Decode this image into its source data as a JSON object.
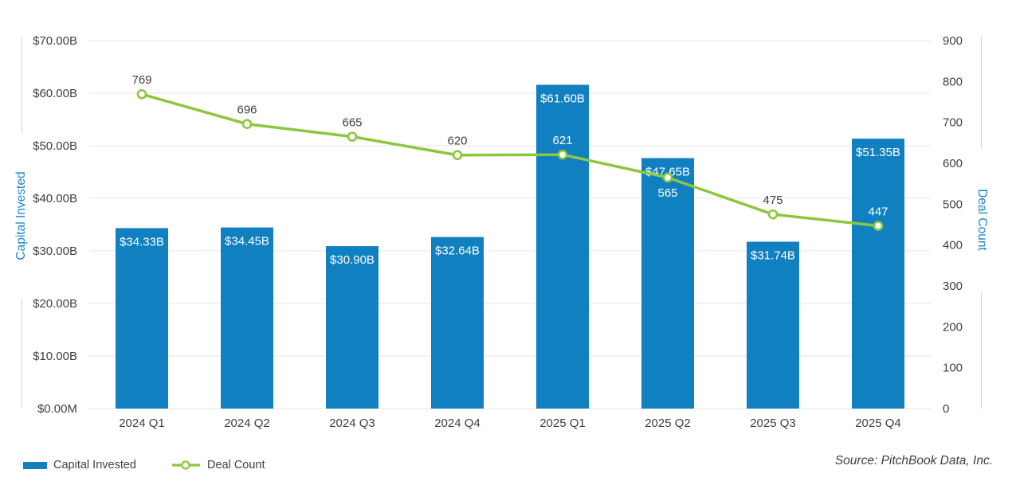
{
  "chart_data": {
    "type": "bar+line combo",
    "categories": [
      "2024 Q1",
      "2024 Q2",
      "2024 Q3",
      "2024 Q4",
      "2025 Q1",
      "2025 Q2",
      "2025 Q3",
      "2025 Q4"
    ],
    "series": [
      {
        "name": "Capital Invested",
        "type": "bar",
        "axis": "left",
        "values": [
          34.33,
          34.45,
          30.9,
          32.64,
          61.6,
          47.65,
          31.74,
          51.35
        ],
        "labels": [
          "$34.33B",
          "$34.45B",
          "$30.90B",
          "$32.64B",
          "$61.60B",
          "$47.65B",
          "$31.74B",
          "$51.35B"
        ],
        "color": "#1180c1"
      },
      {
        "name": "Deal Count",
        "type": "line",
        "axis": "right",
        "values": [
          769,
          696,
          665,
          620,
          621,
          565,
          475,
          447
        ],
        "labels": [
          "769",
          "696",
          "665",
          "620",
          "621",
          "565",
          "475",
          "447"
        ],
        "color": "#8dc63f"
      }
    ],
    "left_axis": {
      "title": "Capital Invested",
      "max": 70,
      "min": 0,
      "ticks": [
        {
          "value": 70,
          "label": "$70.00B"
        },
        {
          "value": 60,
          "label": "$60.00B"
        },
        {
          "value": 50,
          "label": "$50.00B"
        },
        {
          "value": 40,
          "label": "$40.00B"
        },
        {
          "value": 30,
          "label": "$30.00B"
        },
        {
          "value": 20,
          "label": "$20.00B"
        },
        {
          "value": 10,
          "label": "$10.00B"
        },
        {
          "value": 0,
          "label": "$0.00M"
        }
      ]
    },
    "right_axis": {
      "title": "Deal Count",
      "max": 900,
      "min": 0,
      "ticks": [
        {
          "value": 900,
          "label": "900"
        },
        {
          "value": 800,
          "label": "800"
        },
        {
          "value": 700,
          "label": "700"
        },
        {
          "value": 600,
          "label": "600"
        },
        {
          "value": 500,
          "label": "500"
        },
        {
          "value": 400,
          "label": "400"
        },
        {
          "value": 300,
          "label": "300"
        },
        {
          "value": 200,
          "label": "200"
        },
        {
          "value": 100,
          "label": "100"
        },
        {
          "value": 0,
          "label": "0"
        }
      ]
    },
    "grid": "horizontal",
    "legend_position": "bottom-left",
    "source": "Source: PitchBook Data, Inc."
  },
  "colors": {
    "bar": "#1180c1",
    "line": "#8dc63f",
    "axis_title": "#1e86c8",
    "text": "#404040",
    "grid": "#e4e4e4",
    "axis_line": "#d4d4d4",
    "bar_label_text": "#ffffff"
  }
}
